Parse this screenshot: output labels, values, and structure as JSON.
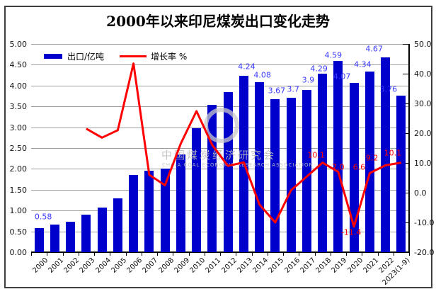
{
  "title": "2000年以来印尼煤炭出口变化走势",
  "legend": {
    "bar_label": "出口/亿吨",
    "line_label": "增长率 %"
  },
  "watermark": {
    "cn": "中国煤炭经济研究会",
    "en": "CHINA COAL ECONOMIC RESEARCH ASSOCIATION"
  },
  "colors": {
    "bar": "#0000cc",
    "bar_label": "#3a3aff",
    "line": "#fe0000",
    "grid": "#9e9e9e",
    "axis": "#000000"
  },
  "chart_data": {
    "type": "bar+line",
    "title": "2000年以来印尼煤炭出口变化走势",
    "categories": [
      "2000",
      "2001",
      "2002",
      "2003",
      "2004",
      "2005",
      "2006",
      "2007",
      "2008",
      "2009",
      "2010",
      "2011",
      "2012",
      "2013",
      "2014",
      "2015",
      "2016",
      "2017",
      "2018",
      "2019",
      "2020",
      "2021",
      "2022",
      "2023(1-9)"
    ],
    "series": [
      {
        "name": "出口/亿吨",
        "type": "bar",
        "axis": "left",
        "color": "#0000cc",
        "values": [
          0.58,
          0.66,
          0.74,
          0.9,
          1.07,
          1.29,
          1.85,
          1.96,
          2.01,
          2.34,
          2.98,
          3.53,
          3.85,
          4.24,
          4.08,
          3.67,
          3.7,
          3.9,
          4.29,
          4.59,
          4.07,
          4.34,
          4.67,
          3.76
        ],
        "point_labels": [
          "0.58",
          null,
          null,
          null,
          null,
          null,
          null,
          null,
          null,
          null,
          null,
          null,
          null,
          "4.24",
          "4.08",
          "3.67",
          "3.7",
          "3.9",
          "4.29",
          "4.59",
          "4.07",
          "4.34",
          "4.67",
          "3.76"
        ]
      },
      {
        "name": "增长率 %",
        "type": "line",
        "axis": "right",
        "color": "#fe0000",
        "values": [
          null,
          null,
          null,
          21.5,
          18.5,
          21.0,
          43.4,
          6.0,
          2.5,
          16.5,
          27.4,
          16.0,
          9.0,
          10.2,
          -4.0,
          -10.0,
          0.8,
          5.4,
          10.1,
          7.0,
          -11.4,
          6.6,
          9.2,
          10.1
        ],
        "point_labels": [
          null,
          null,
          null,
          null,
          null,
          null,
          null,
          null,
          null,
          null,
          null,
          null,
          null,
          null,
          null,
          null,
          null,
          null,
          "10.1",
          "7.0",
          "-11.4",
          "6.6",
          "9.2",
          "10.1"
        ]
      }
    ],
    "left_axis": {
      "label": "出口/亿吨",
      "min": 0.0,
      "max": 5.0,
      "step": 0.5,
      "ticks": [
        "5.00",
        "4.50",
        "4.00",
        "3.50",
        "3.00",
        "2.50",
        "2.00",
        "1.50",
        "1.00",
        "0.50",
        "0.00"
      ]
    },
    "right_axis": {
      "label": "增长率 %",
      "min": -20.0,
      "max": 50.0,
      "step": 10.0,
      "ticks": [
        "50.0",
        "40.0",
        "30.0",
        "20.0",
        "10.0",
        "0.0",
        "-10.0",
        "-20.0"
      ]
    },
    "grid": true,
    "legend_position": "top-left-inside"
  }
}
